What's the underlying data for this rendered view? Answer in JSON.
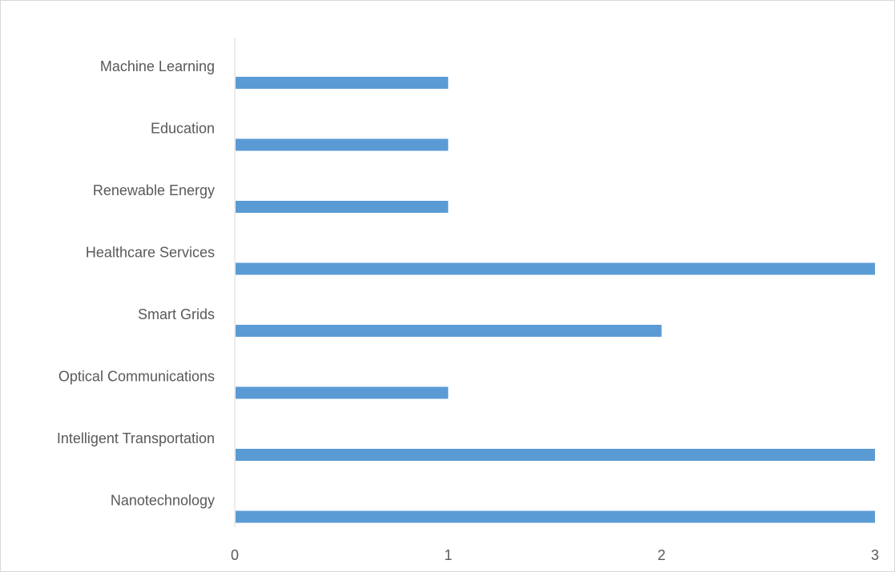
{
  "chart_data": {
    "type": "bar",
    "orientation": "horizontal",
    "categories": [
      "Machine Learning",
      "Education",
      "Renewable Energy",
      "Healthcare Services",
      "Smart Grids",
      "Optical Communications",
      "Intelligent Transportation",
      "Nanotechnology"
    ],
    "values": [
      1,
      1,
      1,
      3,
      2,
      1,
      3,
      3
    ],
    "xlim": [
      0,
      3
    ],
    "x_ticks": [
      "0",
      "1",
      "2",
      "3"
    ],
    "title": "",
    "xlabel": "",
    "ylabel": "",
    "grid": false,
    "legend": "none",
    "bar_color": "#5b9bd5",
    "axis_color": "#d9d9d9",
    "text_color": "#595959"
  }
}
